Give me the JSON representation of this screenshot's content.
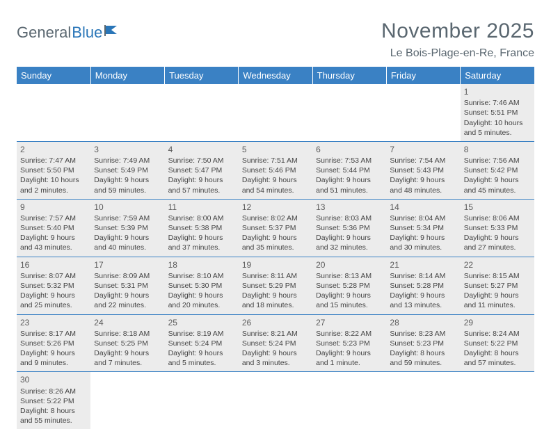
{
  "logo": {
    "part1": "General",
    "part2": "Blue"
  },
  "title": "November 2025",
  "location": "Le Bois-Plage-en-Re, France",
  "colors": {
    "header_bg": "#3a81c4",
    "header_text": "#ffffff",
    "cell_bg": "#ececec",
    "border": "#3a81c4",
    "title_color": "#5a6770",
    "logo_blue": "#2a76b8"
  },
  "days_of_week": [
    "Sunday",
    "Monday",
    "Tuesday",
    "Wednesday",
    "Thursday",
    "Friday",
    "Saturday"
  ],
  "weeks": [
    [
      null,
      null,
      null,
      null,
      null,
      null,
      {
        "n": "1",
        "sr": "Sunrise: 7:46 AM",
        "ss": "Sunset: 5:51 PM",
        "dl1": "Daylight: 10 hours",
        "dl2": "and 5 minutes."
      }
    ],
    [
      {
        "n": "2",
        "sr": "Sunrise: 7:47 AM",
        "ss": "Sunset: 5:50 PM",
        "dl1": "Daylight: 10 hours",
        "dl2": "and 2 minutes."
      },
      {
        "n": "3",
        "sr": "Sunrise: 7:49 AM",
        "ss": "Sunset: 5:49 PM",
        "dl1": "Daylight: 9 hours",
        "dl2": "and 59 minutes."
      },
      {
        "n": "4",
        "sr": "Sunrise: 7:50 AM",
        "ss": "Sunset: 5:47 PM",
        "dl1": "Daylight: 9 hours",
        "dl2": "and 57 minutes."
      },
      {
        "n": "5",
        "sr": "Sunrise: 7:51 AM",
        "ss": "Sunset: 5:46 PM",
        "dl1": "Daylight: 9 hours",
        "dl2": "and 54 minutes."
      },
      {
        "n": "6",
        "sr": "Sunrise: 7:53 AM",
        "ss": "Sunset: 5:44 PM",
        "dl1": "Daylight: 9 hours",
        "dl2": "and 51 minutes."
      },
      {
        "n": "7",
        "sr": "Sunrise: 7:54 AM",
        "ss": "Sunset: 5:43 PM",
        "dl1": "Daylight: 9 hours",
        "dl2": "and 48 minutes."
      },
      {
        "n": "8",
        "sr": "Sunrise: 7:56 AM",
        "ss": "Sunset: 5:42 PM",
        "dl1": "Daylight: 9 hours",
        "dl2": "and 45 minutes."
      }
    ],
    [
      {
        "n": "9",
        "sr": "Sunrise: 7:57 AM",
        "ss": "Sunset: 5:40 PM",
        "dl1": "Daylight: 9 hours",
        "dl2": "and 43 minutes."
      },
      {
        "n": "10",
        "sr": "Sunrise: 7:59 AM",
        "ss": "Sunset: 5:39 PM",
        "dl1": "Daylight: 9 hours",
        "dl2": "and 40 minutes."
      },
      {
        "n": "11",
        "sr": "Sunrise: 8:00 AM",
        "ss": "Sunset: 5:38 PM",
        "dl1": "Daylight: 9 hours",
        "dl2": "and 37 minutes."
      },
      {
        "n": "12",
        "sr": "Sunrise: 8:02 AM",
        "ss": "Sunset: 5:37 PM",
        "dl1": "Daylight: 9 hours",
        "dl2": "and 35 minutes."
      },
      {
        "n": "13",
        "sr": "Sunrise: 8:03 AM",
        "ss": "Sunset: 5:36 PM",
        "dl1": "Daylight: 9 hours",
        "dl2": "and 32 minutes."
      },
      {
        "n": "14",
        "sr": "Sunrise: 8:04 AM",
        "ss": "Sunset: 5:34 PM",
        "dl1": "Daylight: 9 hours",
        "dl2": "and 30 minutes."
      },
      {
        "n": "15",
        "sr": "Sunrise: 8:06 AM",
        "ss": "Sunset: 5:33 PM",
        "dl1": "Daylight: 9 hours",
        "dl2": "and 27 minutes."
      }
    ],
    [
      {
        "n": "16",
        "sr": "Sunrise: 8:07 AM",
        "ss": "Sunset: 5:32 PM",
        "dl1": "Daylight: 9 hours",
        "dl2": "and 25 minutes."
      },
      {
        "n": "17",
        "sr": "Sunrise: 8:09 AM",
        "ss": "Sunset: 5:31 PM",
        "dl1": "Daylight: 9 hours",
        "dl2": "and 22 minutes."
      },
      {
        "n": "18",
        "sr": "Sunrise: 8:10 AM",
        "ss": "Sunset: 5:30 PM",
        "dl1": "Daylight: 9 hours",
        "dl2": "and 20 minutes."
      },
      {
        "n": "19",
        "sr": "Sunrise: 8:11 AM",
        "ss": "Sunset: 5:29 PM",
        "dl1": "Daylight: 9 hours",
        "dl2": "and 18 minutes."
      },
      {
        "n": "20",
        "sr": "Sunrise: 8:13 AM",
        "ss": "Sunset: 5:28 PM",
        "dl1": "Daylight: 9 hours",
        "dl2": "and 15 minutes."
      },
      {
        "n": "21",
        "sr": "Sunrise: 8:14 AM",
        "ss": "Sunset: 5:28 PM",
        "dl1": "Daylight: 9 hours",
        "dl2": "and 13 minutes."
      },
      {
        "n": "22",
        "sr": "Sunrise: 8:15 AM",
        "ss": "Sunset: 5:27 PM",
        "dl1": "Daylight: 9 hours",
        "dl2": "and 11 minutes."
      }
    ],
    [
      {
        "n": "23",
        "sr": "Sunrise: 8:17 AM",
        "ss": "Sunset: 5:26 PM",
        "dl1": "Daylight: 9 hours",
        "dl2": "and 9 minutes."
      },
      {
        "n": "24",
        "sr": "Sunrise: 8:18 AM",
        "ss": "Sunset: 5:25 PM",
        "dl1": "Daylight: 9 hours",
        "dl2": "and 7 minutes."
      },
      {
        "n": "25",
        "sr": "Sunrise: 8:19 AM",
        "ss": "Sunset: 5:24 PM",
        "dl1": "Daylight: 9 hours",
        "dl2": "and 5 minutes."
      },
      {
        "n": "26",
        "sr": "Sunrise: 8:21 AM",
        "ss": "Sunset: 5:24 PM",
        "dl1": "Daylight: 9 hours",
        "dl2": "and 3 minutes."
      },
      {
        "n": "27",
        "sr": "Sunrise: 8:22 AM",
        "ss": "Sunset: 5:23 PM",
        "dl1": "Daylight: 9 hours",
        "dl2": "and 1 minute."
      },
      {
        "n": "28",
        "sr": "Sunrise: 8:23 AM",
        "ss": "Sunset: 5:23 PM",
        "dl1": "Daylight: 8 hours",
        "dl2": "and 59 minutes."
      },
      {
        "n": "29",
        "sr": "Sunrise: 8:24 AM",
        "ss": "Sunset: 5:22 PM",
        "dl1": "Daylight: 8 hours",
        "dl2": "and 57 minutes."
      }
    ],
    [
      {
        "n": "30",
        "sr": "Sunrise: 8:26 AM",
        "ss": "Sunset: 5:22 PM",
        "dl1": "Daylight: 8 hours",
        "dl2": "and 55 minutes."
      },
      null,
      null,
      null,
      null,
      null,
      null
    ]
  ]
}
